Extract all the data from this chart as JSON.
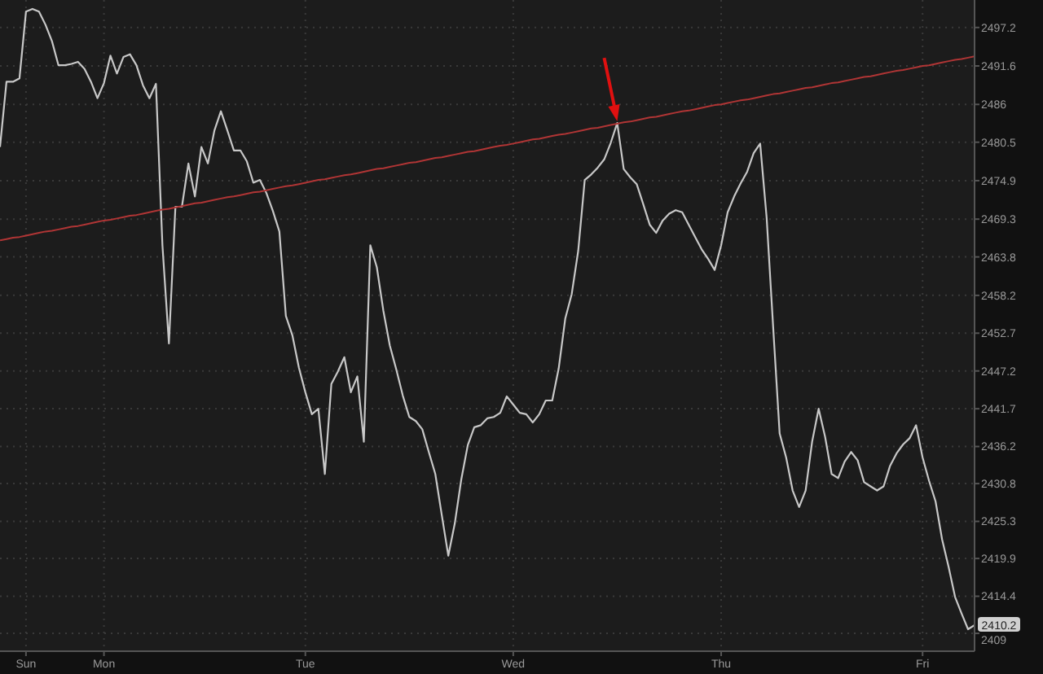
{
  "chart_data": {
    "type": "line",
    "grid": true,
    "categories": [
      null,
      null,
      null,
      null,
      "Sun",
      null,
      null,
      null,
      null,
      null,
      null,
      null,
      null,
      null,
      null,
      null,
      "Mon",
      null,
      null,
      null,
      null,
      null,
      null,
      null,
      null,
      null,
      null,
      null,
      null,
      null,
      null,
      null,
      null,
      null,
      null,
      null,
      null,
      null,
      null,
      null,
      null,
      null,
      null,
      null,
      null,
      null,
      null,
      "Tue",
      null,
      null,
      null,
      null,
      null,
      null,
      null,
      null,
      null,
      null,
      null,
      null,
      null,
      null,
      null,
      null,
      null,
      null,
      null,
      null,
      null,
      null,
      null,
      null,
      null,
      null,
      null,
      null,
      null,
      null,
      null,
      "Wed",
      null,
      null,
      null,
      null,
      null,
      null,
      null,
      null,
      null,
      null,
      null,
      null,
      null,
      null,
      null,
      null,
      null,
      null,
      null,
      null,
      null,
      null,
      null,
      null,
      null,
      null,
      null,
      null,
      null,
      null,
      null,
      "Thu",
      null,
      null,
      null,
      null,
      null,
      null,
      null,
      null,
      null,
      null,
      null,
      null,
      null,
      null,
      null,
      null,
      null,
      null,
      null,
      null,
      null,
      null,
      null,
      null,
      null,
      null,
      null,
      null,
      null,
      null,
      "Fri",
      null,
      null,
      null,
      null,
      null,
      null,
      null,
      null
    ],
    "ylim": [
      2406.4,
      2501.2
    ],
    "yticks": [
      2409,
      2414.4,
      2419.9,
      2425.3,
      2430.8,
      2436.2,
      2441.7,
      2447.2,
      2452.7,
      2458.2,
      2463.8,
      2469.3,
      2474.9,
      2480.5,
      2486,
      2491.6,
      2497.2
    ],
    "annotations": [
      {
        "text": "2410.2",
        "y": 2410.2
      }
    ],
    "series": [
      {
        "color": "#c8c8c8",
        "values": [
          2479.8,
          2489.3,
          2489.3,
          2489.8,
          2499.5,
          2499.9,
          2499.5,
          2497.6,
          2495.2,
          2491.7,
          2491.7,
          2491.9,
          2492.2,
          2491.2,
          2489.3,
          2486.9,
          2489.1,
          2493.1,
          2490.5,
          2492.9,
          2493.3,
          2491.7,
          2488.8,
          2486.9,
          2489.0,
          2465.5,
          2451.2,
          2471.1,
          2471.1,
          2477.4,
          2472.6,
          2479.8,
          2477.4,
          2482.2,
          2485.0,
          2482.2,
          2479.3,
          2479.3,
          2477.7,
          2474.6,
          2475.0,
          2473.1,
          2470.5,
          2467.5,
          2455.2,
          2452.4,
          2447.7,
          2444.1,
          2440.9,
          2441.7,
          2432.2,
          2445.3,
          2447.1,
          2449.2,
          2444.1,
          2446.4,
          2436.9,
          2465.5,
          2462.3,
          2456.0,
          2450.9,
          2447.4,
          2443.6,
          2440.5,
          2439.9,
          2438.7,
          2435.4,
          2432.2,
          2426.2,
          2420.3,
          2425.0,
          2431.4,
          2436.4,
          2439.0,
          2439.3,
          2440.3,
          2440.5,
          2441.1,
          2443.5,
          2442.3,
          2441.1,
          2440.9,
          2439.7,
          2440.9,
          2442.9,
          2442.9,
          2447.6,
          2454.8,
          2458.4,
          2464.7,
          2475.0,
          2475.8,
          2476.8,
          2478.0,
          2480.4,
          2483.3,
          2476.6,
          2475.4,
          2474.4,
          2471.5,
          2468.5,
          2467.3,
          2469.1,
          2470.1,
          2470.6,
          2470.3,
          2468.5,
          2466.7,
          2464.9,
          2463.5,
          2461.9,
          2465.5,
          2470.3,
          2472.6,
          2474.5,
          2476.2,
          2478.9,
          2480.3,
          2469.5,
          2453.6,
          2438.1,
          2434.6,
          2429.8,
          2427.4,
          2429.8,
          2436.9,
          2441.7,
          2437.6,
          2432.2,
          2431.6,
          2434.0,
          2435.4,
          2434.2,
          2431.0,
          2430.4,
          2429.8,
          2430.4,
          2433.4,
          2435.2,
          2436.5,
          2437.4,
          2439.3,
          2434.6,
          2431.2,
          2428.2,
          2422.7,
          2418.7,
          2414.3,
          2411.9,
          2409.6,
          2410.2
        ]
      },
      {
        "color": "#b03535",
        "line_style": "solid",
        "values": [
          2466.2,
          2466.4,
          2466.6,
          2466.7,
          2466.9,
          2467.1,
          2467.3,
          2467.5,
          2467.6,
          2467.8,
          2468.0,
          2468.2,
          2468.3,
          2468.5,
          2468.7,
          2468.9,
          2469.1,
          2469.2,
          2469.4,
          2469.6,
          2469.8,
          2469.9,
          2470.1,
          2470.3,
          2470.5,
          2470.7,
          2470.8,
          2471.0,
          2471.2,
          2471.4,
          2471.6,
          2471.7,
          2471.9,
          2472.1,
          2472.3,
          2472.5,
          2472.6,
          2472.8,
          2473.0,
          2473.2,
          2473.3,
          2473.5,
          2473.7,
          2473.9,
          2474.1,
          2474.2,
          2474.4,
          2474.6,
          2474.8,
          2475.0,
          2475.1,
          2475.3,
          2475.5,
          2475.7,
          2475.8,
          2476.0,
          2476.2,
          2476.4,
          2476.6,
          2476.7,
          2476.9,
          2477.1,
          2477.3,
          2477.5,
          2477.6,
          2477.8,
          2478.0,
          2478.2,
          2478.3,
          2478.5,
          2478.7,
          2478.9,
          2479.1,
          2479.2,
          2479.4,
          2479.6,
          2479.8,
          2480.0,
          2480.1,
          2480.3,
          2480.5,
          2480.7,
          2480.9,
          2481.0,
          2481.2,
          2481.4,
          2481.6,
          2481.7,
          2481.9,
          2482.1,
          2482.3,
          2482.5,
          2482.6,
          2482.8,
          2483.0,
          2483.2,
          2483.4,
          2483.5,
          2483.7,
          2483.9,
          2484.1,
          2484.2,
          2484.4,
          2484.6,
          2484.8,
          2485.0,
          2485.1,
          2485.3,
          2485.5,
          2485.7,
          2485.9,
          2486.0,
          2486.2,
          2486.4,
          2486.6,
          2486.7,
          2486.9,
          2487.1,
          2487.3,
          2487.5,
          2487.6,
          2487.8,
          2488.0,
          2488.2,
          2488.4,
          2488.5,
          2488.7,
          2488.9,
          2489.1,
          2489.2,
          2489.4,
          2489.6,
          2489.8,
          2490.0,
          2490.1,
          2490.3,
          2490.5,
          2490.7,
          2490.9,
          2491.0,
          2491.2,
          2491.4,
          2491.6,
          2491.7,
          2491.9,
          2492.1,
          2492.3,
          2492.5,
          2492.6,
          2492.8,
          2493.0
        ]
      }
    ]
  }
}
